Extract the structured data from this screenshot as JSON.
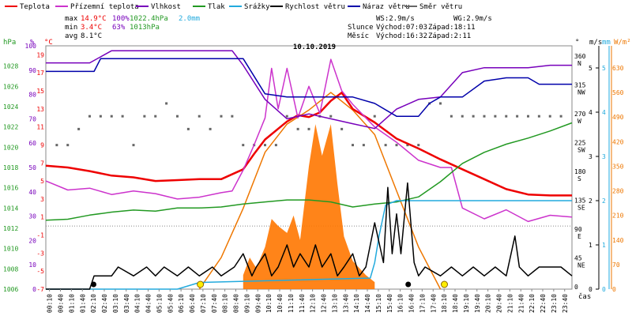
{
  "chart_data": {
    "type": "line",
    "title": "10.10.2019",
    "legend": [
      {
        "label": "Teplota",
        "color": "#ee0000"
      },
      {
        "label": "Přízemní teplota",
        "color": "#cc33cc"
      },
      {
        "label": "Vlhkost",
        "color": "#7700bb"
      },
      {
        "label": "Tlak",
        "color": "#229922"
      },
      {
        "label": "Srážky",
        "color": "#22aadd"
      },
      {
        "label": "Rychlost větru",
        "color": "#000000"
      },
      {
        "label": "Náraz větru",
        "color": "#0000aa"
      },
      {
        "label": "Směr větru",
        "color": "#666666"
      }
    ],
    "stats": {
      "max": {
        "label": "max",
        "temp": "14.9°C",
        "hum": "100%",
        "press": "1022.4hPa",
        "rain": "2.0mm"
      },
      "min": {
        "label": "min",
        "temp": "3.4°C",
        "hum": "63%",
        "press": "1013hPa"
      },
      "avg": {
        "label": "avg",
        "temp": "8.1°C"
      }
    },
    "wind_info": {
      "ws": "WS:2.9m/s",
      "wg": "WG:2.9m/s"
    },
    "sun": {
      "label": "Slunce",
      "rise": "Východ:07:03",
      "set": "Západ:18:11"
    },
    "moon": {
      "label": "Měsíc",
      "rise": "Východ:16:32",
      "set": "Západ:2:11"
    },
    "axis_units": {
      "hpa": "hPa",
      "pct": "%",
      "degc": "°C",
      "deg": "°",
      "ms": "m/s",
      "mm": "mm",
      "wm2": "W/m²",
      "time": "čas"
    },
    "y_hpa_ticks": [
      "1028",
      "1026",
      "1024",
      "1022",
      "1020",
      "1018",
      "1016",
      "1014",
      "1012",
      "1010",
      "1008",
      "1006"
    ],
    "y_pct_ticks": [
      "100",
      "90",
      "80",
      "70",
      "60",
      "50",
      "40",
      "30",
      "20",
      "10",
      "0"
    ],
    "y_temp_ticks": [
      "19",
      "17",
      "15",
      "13",
      "11",
      "9",
      "7",
      "5",
      "3",
      "1",
      "-1",
      "-3",
      "-5",
      "-7"
    ],
    "y_dir_ticks": [
      {
        "v": "360",
        "d": "N"
      },
      {
        "v": "315",
        "d": "NW"
      },
      {
        "v": "270",
        "d": "W"
      },
      {
        "v": "225",
        "d": "SW"
      },
      {
        "v": "180",
        "d": "S"
      },
      {
        "v": "135",
        "d": "SE"
      },
      {
        "v": "90",
        "d": "E"
      },
      {
        "v": "45",
        "d": "NE"
      },
      {
        "v": "0",
        "d": ""
      }
    ],
    "y_ms_ticks": [
      "5",
      "4",
      "3",
      "2",
      "1",
      "0"
    ],
    "y_mm_ticks": [
      "5",
      "4",
      "3",
      "2",
      "1",
      "0"
    ],
    "y_wm2_ticks": [
      "630",
      "560",
      "490",
      "420",
      "350",
      "280",
      "210",
      "140",
      "70",
      "0"
    ],
    "x_ticks": [
      "00:10",
      "00:40",
      "01:10",
      "01:40",
      "02:10",
      "02:40",
      "03:10",
      "03:40",
      "04:10",
      "04:40",
      "05:10",
      "05:40",
      "06:10",
      "06:40",
      "07:10",
      "07:40",
      "08:10",
      "08:40",
      "09:10",
      "09:40",
      "10:10",
      "10:40",
      "11:10",
      "11:40",
      "12:10",
      "12:40",
      "13:10",
      "13:40",
      "14:10",
      "14:40",
      "15:10",
      "15:40",
      "16:10",
      "16:40",
      "17:10",
      "17:40",
      "18:10",
      "18:40",
      "19:10",
      "19:40",
      "20:10",
      "20:40",
      "21:10",
      "21:40",
      "22:10",
      "22:40",
      "23:10",
      "23:40"
    ],
    "series": [
      {
        "name": "Teplota",
        "color": "#ee0000",
        "axis": "temp",
        "x": [
          0,
          1,
          2,
          3,
          4,
          5,
          6,
          7,
          8,
          9,
          9.5,
          10,
          11,
          11.5,
          12,
          12.5,
          13,
          13.5,
          14,
          15,
          16,
          17,
          18,
          19,
          20,
          21,
          22,
          23,
          24
        ],
        "y": [
          6.7,
          6.5,
          6.1,
          5.6,
          5.4,
          5.0,
          5.1,
          5.2,
          5.2,
          6.3,
          8.0,
          9.6,
          11.6,
          12.3,
          12.1,
          12.6,
          13.9,
          14.8,
          13.0,
          11.5,
          9.7,
          8.6,
          7.4,
          6.3,
          5.2,
          4.1,
          3.5,
          3.4,
          3.4
        ]
      },
      {
        "name": "Přízemní teplota",
        "color": "#cc33cc",
        "axis": "temp",
        "x": [
          0,
          1,
          2,
          3,
          4,
          5,
          6,
          7,
          8,
          8.5,
          9,
          9.5,
          10,
          10.3,
          10.6,
          11,
          11.5,
          12,
          12.5,
          13,
          13.5,
          14,
          15,
          16,
          17,
          18,
          18.5,
          19,
          20,
          21,
          22,
          23,
          24
        ],
        "y": [
          5.0,
          4.0,
          4.2,
          3.5,
          3.9,
          3.6,
          3.0,
          3.2,
          3.7,
          3.9,
          6.2,
          9.0,
          12.0,
          17.5,
          13.0,
          17.5,
          12.0,
          15.5,
          12.5,
          18.5,
          15.0,
          13.5,
          11.0,
          9.3,
          7.3,
          6.5,
          6.5,
          2.0,
          0.8,
          1.8,
          0.5,
          1.2,
          1.0
        ]
      },
      {
        "name": "Vlhkost",
        "color": "#7700bb",
        "axis": "pct",
        "x": [
          0,
          1,
          2,
          3,
          4,
          5,
          6,
          7,
          8,
          8.5,
          9,
          10,
          11,
          12,
          13,
          14,
          15,
          16,
          17,
          18,
          19,
          20,
          21,
          22,
          23,
          24
        ],
        "y": [
          93,
          93,
          93,
          98,
          98,
          98,
          98,
          98,
          98,
          98,
          92,
          78,
          70,
          72,
          70,
          68,
          66,
          74,
          78,
          79,
          89,
          91,
          91,
          91,
          92,
          92
        ]
      },
      {
        "name": "Tlak",
        "color": "#229922",
        "axis": "hpa",
        "x": [
          0,
          1,
          2,
          3,
          4,
          5,
          6,
          7,
          8,
          9,
          10,
          11,
          12,
          13,
          14,
          15,
          16,
          17,
          18,
          19,
          20,
          21,
          22,
          23,
          24
        ],
        "y": [
          1012.8,
          1012.9,
          1013.3,
          1013.6,
          1013.8,
          1013.7,
          1014.0,
          1014.0,
          1014.1,
          1014.4,
          1014.6,
          1014.8,
          1014.8,
          1014.6,
          1014.1,
          1014.4,
          1014.6,
          1015.1,
          1016.6,
          1018.4,
          1019.5,
          1020.3,
          1020.9,
          1021.6,
          1022.4
        ]
      },
      {
        "name": "Srážky",
        "color": "#22aadd",
        "axis": "mm",
        "x": [
          0,
          6,
          7,
          14.8,
          15.0,
          15.2,
          15.5,
          16,
          17,
          18,
          24
        ],
        "y": [
          0,
          0,
          0.15,
          0.25,
          0.6,
          1.2,
          1.9,
          2.0,
          2.0,
          2.0,
          2.0
        ]
      },
      {
        "name": "Rychlost větru",
        "color": "#000000",
        "axis": "ms",
        "x": [
          0,
          2,
          2.2,
          3,
          3.3,
          4,
          4.6,
          5,
          5.4,
          6,
          6.5,
          7,
          7.6,
          8,
          8.6,
          9,
          9.4,
          9.6,
          10,
          10.3,
          10.6,
          11,
          11.3,
          11.6,
          12,
          12.3,
          12.6,
          13,
          13.3,
          13.6,
          14,
          14.3,
          14.6,
          15,
          15.4,
          15.6,
          15.8,
          16,
          16.2,
          16.5,
          16.8,
          17,
          17.3,
          18,
          18.5,
          19,
          19.5,
          20,
          20.5,
          21,
          21.4,
          21.6,
          22,
          22.5,
          23,
          23.5,
          24
        ],
        "y": [
          0,
          0,
          0.3,
          0.3,
          0.5,
          0.3,
          0.5,
          0.3,
          0.5,
          0.3,
          0.5,
          0.3,
          0.5,
          0.3,
          0.5,
          0.8,
          0.3,
          0.5,
          0.8,
          0.3,
          0.5,
          1.0,
          0.5,
          0.8,
          0.5,
          1.0,
          0.5,
          0.8,
          0.3,
          0.5,
          0.8,
          0.3,
          0.5,
          1.5,
          0.6,
          2.3,
          0.8,
          1.7,
          0.8,
          2.4,
          0.6,
          0.3,
          0.5,
          0.3,
          0.5,
          0.3,
          0.5,
          0.3,
          0.5,
          0.3,
          1.2,
          0.5,
          0.3,
          0.5,
          0.5,
          0.5,
          0.3
        ]
      },
      {
        "name": "Náraz větru",
        "color": "#0000aa",
        "axis": "deg",
        "x": [
          0,
          2.2,
          2.5,
          9,
          10,
          11,
          12,
          13,
          14,
          15,
          16,
          17,
          17.5,
          18,
          19,
          20,
          21,
          22,
          22.5,
          24
        ],
        "y": [
          340,
          340,
          360,
          360,
          305,
          300,
          300,
          300,
          300,
          290,
          270,
          270,
          290,
          300,
          300,
          325,
          330,
          330,
          320,
          320
        ]
      }
    ],
    "wind_dir_points": [
      {
        "x": 0.5,
        "y": 225
      },
      {
        "x": 1.0,
        "y": 225
      },
      {
        "x": 1.5,
        "y": 250
      },
      {
        "x": 2.0,
        "y": 270
      },
      {
        "x": 2.5,
        "y": 270
      },
      {
        "x": 3.0,
        "y": 270
      },
      {
        "x": 3.5,
        "y": 270
      },
      {
        "x": 4.0,
        "y": 225
      },
      {
        "x": 4.5,
        "y": 270
      },
      {
        "x": 5.0,
        "y": 270
      },
      {
        "x": 5.5,
        "y": 290
      },
      {
        "x": 6.0,
        "y": 270
      },
      {
        "x": 6.5,
        "y": 250
      },
      {
        "x": 7.0,
        "y": 270
      },
      {
        "x": 7.5,
        "y": 250
      },
      {
        "x": 8.0,
        "y": 270
      },
      {
        "x": 8.5,
        "y": 270
      },
      {
        "x": 9.0,
        "y": 225
      },
      {
        "x": 9.5,
        "y": 225
      },
      {
        "x": 10.0,
        "y": 225
      },
      {
        "x": 10.5,
        "y": 225
      },
      {
        "x": 11.0,
        "y": 270
      },
      {
        "x": 11.5,
        "y": 250
      },
      {
        "x": 12.0,
        "y": 250
      },
      {
        "x": 12.5,
        "y": 270
      },
      {
        "x": 13.0,
        "y": 270
      },
      {
        "x": 13.5,
        "y": 250
      },
      {
        "x": 14.0,
        "y": 225
      },
      {
        "x": 14.5,
        "y": 225
      },
      {
        "x": 15.0,
        "y": 270
      },
      {
        "x": 15.5,
        "y": 225
      },
      {
        "x": 16.0,
        "y": 225
      },
      {
        "x": 16.5,
        "y": 225
      },
      {
        "x": 17.0,
        "y": 225
      },
      {
        "x": 17.5,
        "y": 290
      },
      {
        "x": 18.0,
        "y": 290
      },
      {
        "x": 18.5,
        "y": 270
      },
      {
        "x": 19.0,
        "y": 270
      },
      {
        "x": 19.5,
        "y": 270
      },
      {
        "x": 20.0,
        "y": 270
      },
      {
        "x": 20.5,
        "y": 270
      },
      {
        "x": 21.0,
        "y": 270
      },
      {
        "x": 21.5,
        "y": 270
      },
      {
        "x": 22.0,
        "y": 270
      },
      {
        "x": 22.5,
        "y": 270
      },
      {
        "x": 23.0,
        "y": 270
      },
      {
        "x": 23.5,
        "y": 270
      }
    ],
    "solar": {
      "color": "#ee7700",
      "axis": "wm2",
      "x": [
        7,
        8,
        9,
        10,
        11,
        12,
        13,
        14,
        15,
        16,
        17,
        18
      ],
      "y": [
        0,
        90,
        230,
        390,
        470,
        510,
        560,
        510,
        440,
        280,
        120,
        0
      ]
    },
    "solar_bars": {
      "color": "#ff7700",
      "axis": "wm2",
      "x": [
        9.0,
        9.3,
        9.6,
        10.0,
        10.3,
        10.6,
        11.0,
        11.3,
        11.6,
        12.0,
        12.3,
        12.6,
        13.0,
        13.3,
        13.6,
        14.0,
        14.3,
        14.6,
        15.0
      ],
      "y": [
        40,
        90,
        60,
        120,
        200,
        180,
        160,
        210,
        140,
        350,
        470,
        380,
        470,
        300,
        150,
        80,
        60,
        40,
        20
      ]
    }
  }
}
